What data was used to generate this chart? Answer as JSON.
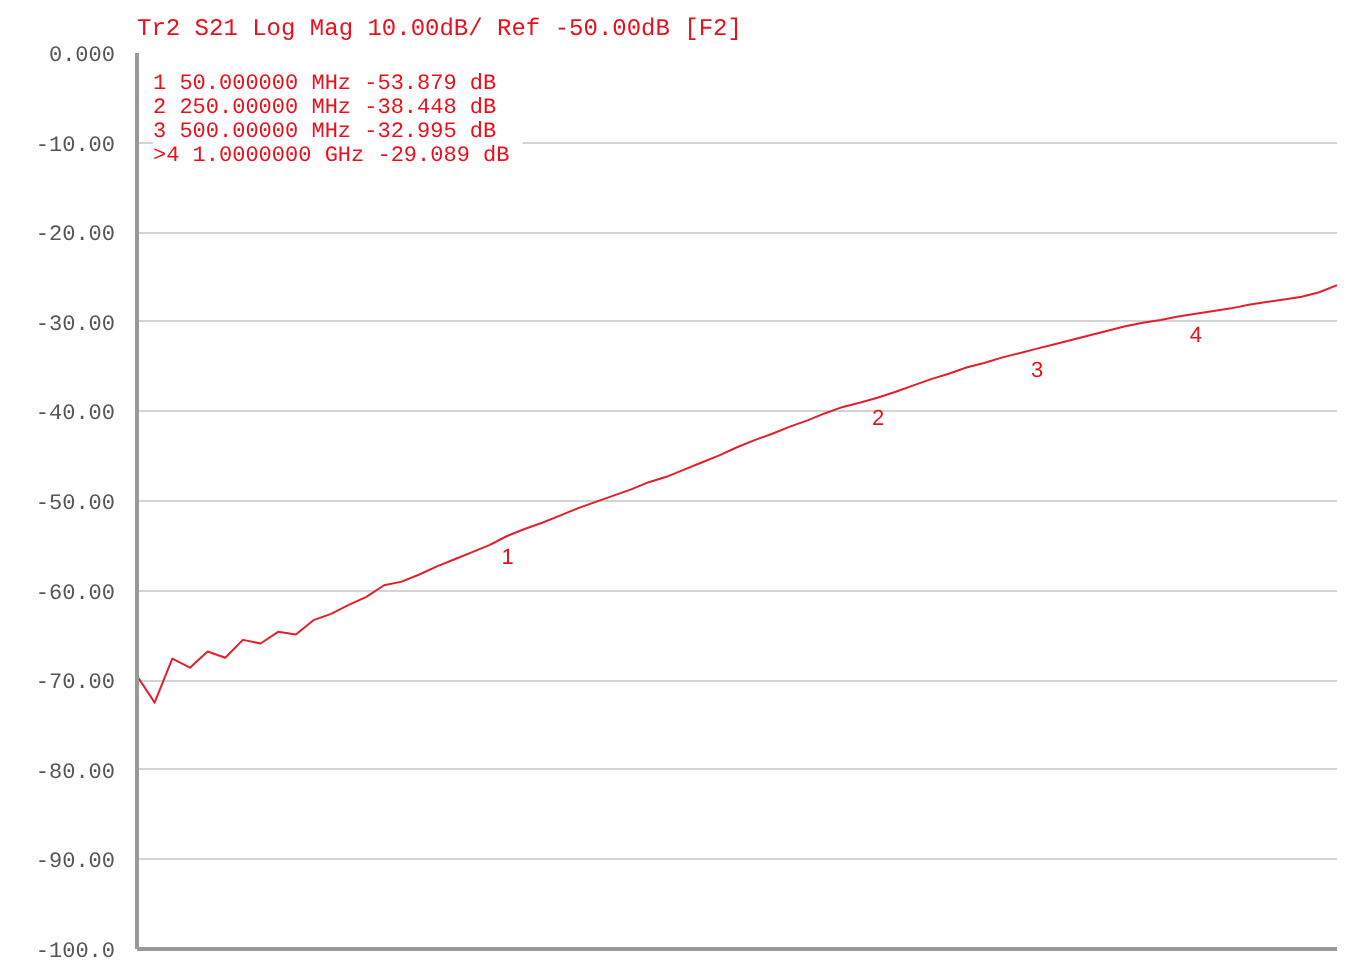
{
  "chart_data": {
    "type": "line",
    "title": "Tr2 S21 Log Mag 10.00dB/ Ref -50.00dB [F2]",
    "annotations": [
      "1   50.000000 MHz -53.879 dB",
      "2   250.00000 MHz -38.448 dB",
      "3   500.00000 MHz -32.995 dB",
      ">4  1.0000000 GHz -29.089 dB",
      {
        "text": "1",
        "y": -53.879
      },
      {
        "text": "2",
        "y": -38.448
      },
      {
        "text": "3",
        "y": -32.995
      },
      {
        "text": "4",
        "y": -29.089
      }
    ],
    "categories": [
      null,
      null,
      null,
      null,
      null,
      null,
      null,
      null,
      null,
      null,
      null,
      null,
      null,
      null,
      null,
      null,
      null,
      null,
      null,
      null,
      null,
      null,
      null,
      null,
      null,
      null,
      null,
      null,
      null,
      null,
      null,
      null,
      null,
      null,
      null,
      null,
      null,
      null,
      null,
      null,
      null,
      null,
      null,
      null,
      null,
      null,
      null,
      null,
      null,
      null,
      null,
      null,
      null,
      null,
      null,
      null,
      null,
      null,
      null,
      null,
      null,
      null,
      null,
      null,
      null,
      null,
      null,
      null,
      null
    ],
    "series": [
      {
        "color": "#e0202c",
        "values": [
          -69.5,
          -72.5,
          -67.6,
          -68.6,
          -66.8,
          -67.5,
          -65.5,
          -65.9,
          -64.6,
          -64.9,
          -63.3,
          -62.6,
          -61.6,
          -60.7,
          -59.4,
          -59.0,
          -58.2,
          -57.3,
          -56.5,
          -55.7,
          -54.9,
          -53.879,
          -53.1,
          -52.4,
          -51.6,
          -50.8,
          -50.1,
          -49.4,
          -48.7,
          -47.9,
          -47.3,
          -46.5,
          -45.7,
          -44.9,
          -44.0,
          -43.2,
          -42.5,
          -41.7,
          -41.0,
          -40.2,
          -39.5,
          -39.0,
          -38.448,
          -37.8,
          -37.1,
          -36.4,
          -35.8,
          -35.1,
          -34.6,
          -34.0,
          -33.5,
          -32.995,
          -32.5,
          -32.0,
          -31.5,
          -31.0,
          -30.5,
          -30.1,
          -29.8,
          -29.4,
          -29.089,
          -28.8,
          -28.5,
          -28.1,
          -27.8,
          -27.5,
          -27.2,
          -26.7,
          -25.9
        ]
      }
    ],
    "ylim": [
      -100,
      0
    ],
    "yticks": [
      {
        "value": 0,
        "label": "0.000"
      },
      {
        "value": -10,
        "label": "-10.00"
      },
      {
        "value": -20,
        "label": "-20.00"
      },
      {
        "value": -30,
        "label": "-30.00"
      },
      {
        "value": -40,
        "label": "-40.00"
      },
      {
        "value": -50,
        "label": "-50.00"
      },
      {
        "value": -60,
        "label": "-60.00"
      },
      {
        "value": -70,
        "label": "-70.00"
      },
      {
        "value": -80,
        "label": "-80.00"
      },
      {
        "value": -90,
        "label": "-90.00"
      },
      {
        "value": -100,
        "label": "-100.0"
      }
    ],
    "grid": "y",
    "tick_labels": "y",
    "marker": "none",
    "line_style": "solid"
  }
}
